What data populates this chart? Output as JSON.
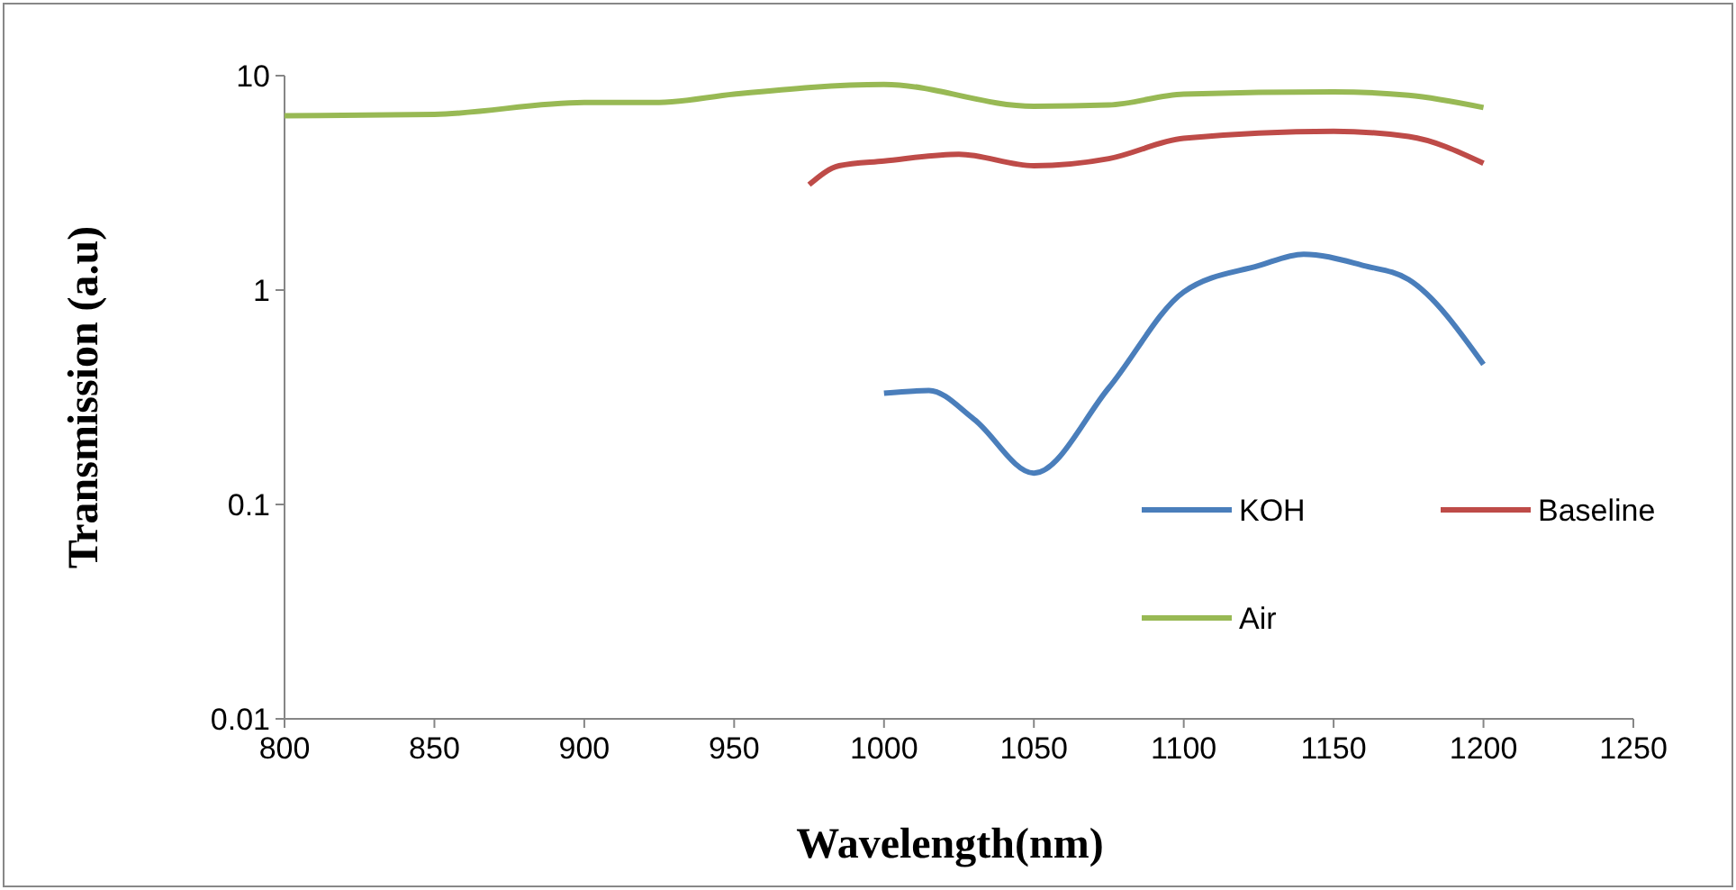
{
  "chart_data": {
    "type": "line",
    "xlabel": "Wavelength(nm)",
    "ylabel": "Transmission (a.u)",
    "log": "y",
    "xlim": [
      800,
      1250
    ],
    "xticks": [
      800,
      850,
      900,
      950,
      1000,
      1050,
      1100,
      1150,
      1200,
      1250
    ],
    "ylim": [
      0.01,
      10
    ],
    "yticks": [
      0.01,
      0.1,
      1,
      10
    ],
    "legend": "right",
    "grid": false,
    "series": [
      {
        "name": "KOH",
        "color": "#4a7ebb",
        "x": [
          1000,
          1015,
          1030,
          1050,
          1075,
          1100,
          1125,
          1140,
          1160,
          1175,
          1200
        ],
        "values": [
          0.33,
          0.34,
          0.25,
          0.14,
          0.35,
          0.98,
          1.3,
          1.47,
          1.3,
          1.12,
          0.45
        ]
      },
      {
        "name": "Baseline",
        "color": "#be4b48",
        "x": [
          975,
          985,
          1000,
          1025,
          1050,
          1075,
          1100,
          1150,
          1175,
          1200
        ],
        "values": [
          3.1,
          3.8,
          4.0,
          4.3,
          3.8,
          4.1,
          5.1,
          5.5,
          5.2,
          3.9
        ]
      },
      {
        "name": "Air",
        "color": "#98b954",
        "x": [
          800,
          850,
          900,
          925,
          950,
          1000,
          1050,
          1075,
          1100,
          1150,
          1175,
          1200
        ],
        "values": [
          6.5,
          6.6,
          7.5,
          7.5,
          8.2,
          9.1,
          7.2,
          7.3,
          8.2,
          8.4,
          8.1,
          7.1
        ]
      }
    ]
  }
}
